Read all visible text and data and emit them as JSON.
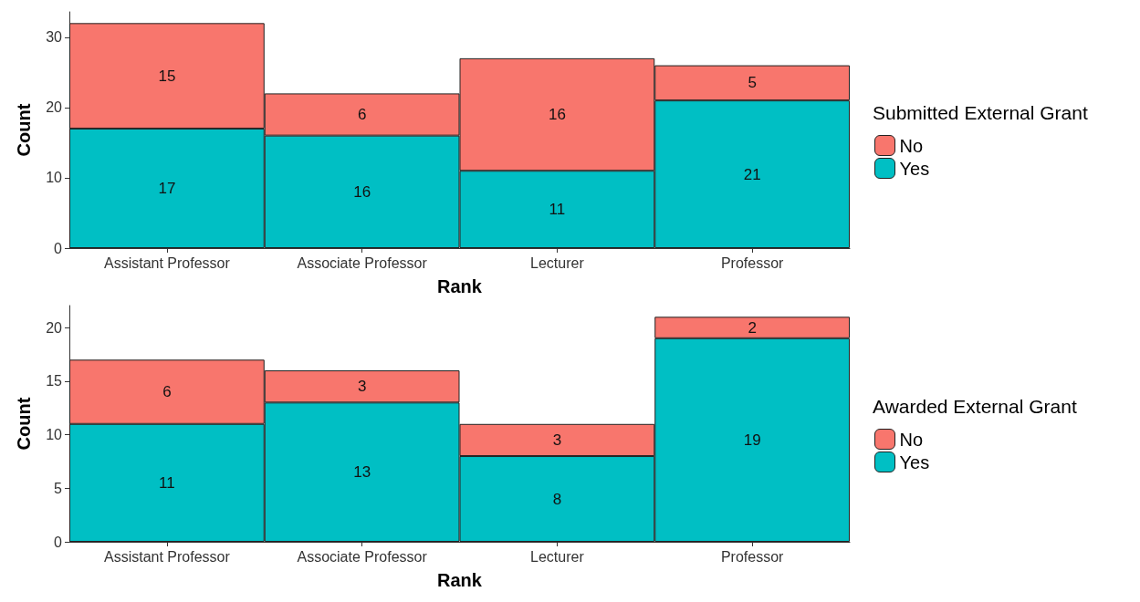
{
  "chart_data": [
    {
      "type": "bar",
      "stacked": true,
      "categories": [
        "Assistant Professor",
        "Associate Professor",
        "Lecturer",
        "Professor"
      ],
      "xlabel": "Rank",
      "ylabel": "Count",
      "legend_title": "Submitted External Grant",
      "legend": "right",
      "grid": false,
      "data_labels": true,
      "ylim": [
        0,
        33.6
      ],
      "yticks": [
        0,
        10,
        20,
        30
      ],
      "series": [
        {
          "name": "Yes",
          "color": "#00bfc4",
          "values": [
            17,
            16,
            11,
            21
          ]
        },
        {
          "name": "No",
          "color": "#f8766d",
          "values": [
            15,
            6,
            16,
            5
          ]
        }
      ]
    },
    {
      "type": "bar",
      "stacked": true,
      "categories": [
        "Assistant Professor",
        "Associate Professor",
        "Lecturer",
        "Professor"
      ],
      "xlabel": "Rank",
      "ylabel": "Count",
      "legend_title": "Awarded External Grant",
      "legend": "right",
      "grid": false,
      "data_labels": true,
      "ylim": [
        0,
        22.05
      ],
      "yticks": [
        0,
        5,
        10,
        15,
        20
      ],
      "series": [
        {
          "name": "Yes",
          "color": "#00bfc4",
          "values": [
            11,
            13,
            8,
            19
          ]
        },
        {
          "name": "No",
          "color": "#f8766d",
          "values": [
            6,
            3,
            3,
            2
          ]
        }
      ]
    }
  ]
}
